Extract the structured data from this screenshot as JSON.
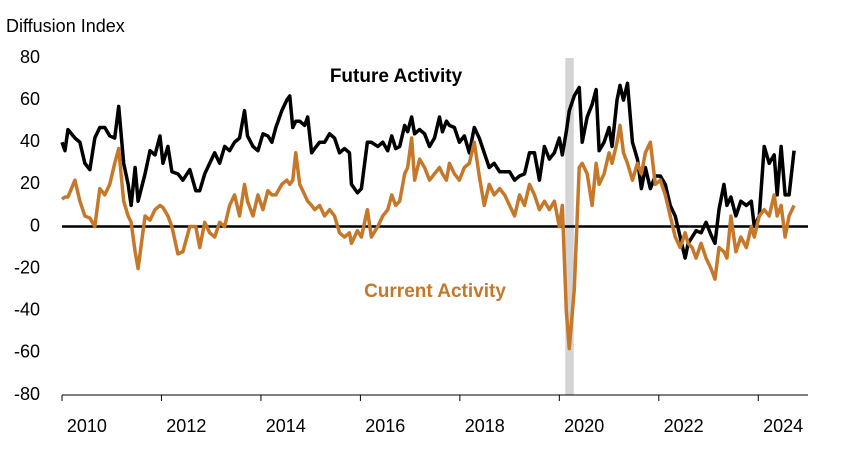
{
  "chart_data": {
    "type": "line",
    "y_axis_label": "Diffusion Index",
    "annotations": [
      {
        "text": "Future Activity",
        "series": 0
      },
      {
        "text": "Current Activity",
        "series": 1
      }
    ],
    "shaded_region": [
      2020.12,
      2020.29
    ],
    "xlim": [
      2010,
      2025
    ],
    "xticks": [
      2010,
      2012,
      2014,
      2016,
      2018,
      2020,
      2022,
      2024
    ],
    "ylim": [
      -80,
      80
    ],
    "yticks": [
      -80,
      -60,
      -40,
      -20,
      0,
      20,
      40,
      60,
      80
    ],
    "x": [
      2010.0,
      2010.06,
      2010.12,
      2010.26,
      2010.36,
      2010.46,
      2010.56,
      2010.66,
      2010.76,
      2010.86,
      2010.96,
      2011.06,
      2011.14,
      2011.24,
      2011.33,
      2011.39,
      2011.47,
      2011.53,
      2011.67,
      2011.77,
      2011.87,
      2011.97,
      2012.03,
      2012.13,
      2012.21,
      2012.33,
      2012.43,
      2012.57,
      2012.69,
      2012.77,
      2012.87,
      2012.97,
      2013.07,
      2013.17,
      2013.27,
      2013.37,
      2013.47,
      2013.57,
      2013.67,
      2013.73,
      2013.84,
      2013.94,
      2014.04,
      2014.14,
      2014.22,
      2014.3,
      2014.42,
      2014.52,
      2014.58,
      2014.64,
      2014.7,
      2014.78,
      2014.88,
      2014.94,
      2015.02,
      2015.08,
      2015.18,
      2015.28,
      2015.38,
      2015.48,
      2015.58,
      2015.68,
      2015.78,
      2015.82,
      2015.94,
      2016.02,
      2016.14,
      2016.22,
      2016.35,
      2016.45,
      2016.55,
      2016.63,
      2016.71,
      2016.79,
      2016.89,
      2016.95,
      2017.03,
      2017.09,
      2017.19,
      2017.29,
      2017.39,
      2017.49,
      2017.59,
      2017.65,
      2017.73,
      2017.79,
      2017.89,
      2017.99,
      2018.09,
      2018.19,
      2018.29,
      2018.39,
      2018.49,
      2018.59,
      2018.69,
      2018.8,
      2018.9,
      2019.0,
      2019.1,
      2019.2,
      2019.3,
      2019.4,
      2019.5,
      2019.6,
      2019.7,
      2019.8,
      2019.9,
      2020.0,
      2020.06,
      2020.14,
      2020.2,
      2020.3,
      2020.4,
      2020.46,
      2020.56,
      2020.66,
      2020.74,
      2020.8,
      2020.9,
      2021.0,
      2021.06,
      2021.16,
      2021.22,
      2021.29,
      2021.37,
      2021.47,
      2021.57,
      2021.65,
      2021.73,
      2021.83,
      2021.93,
      2022.03,
      2022.13,
      2022.23,
      2022.33,
      2022.43,
      2022.53,
      2022.59,
      2022.67,
      2022.75,
      2022.85,
      2022.95,
      2023.05,
      2023.13,
      2023.21,
      2023.31,
      2023.37,
      2023.45,
      2023.55,
      2023.65,
      2023.76,
      2023.86,
      2023.92,
      2024.02,
      2024.12,
      2024.22,
      2024.32,
      2024.38,
      2024.46,
      2024.54,
      2024.62,
      2024.72
    ],
    "series": [
      {
        "name": "Future Activity",
        "color": "#000000",
        "values": [
          40,
          36,
          46,
          42,
          40,
          30,
          27,
          42,
          47,
          47,
          43,
          42,
          57,
          30,
          20,
          10,
          28,
          12,
          25,
          36,
          34,
          43,
          30,
          38,
          26,
          25,
          22,
          27,
          17,
          17,
          25,
          30,
          35,
          30,
          38,
          36,
          40,
          42,
          55,
          43,
          38,
          36,
          44,
          43,
          40,
          47,
          55,
          60,
          62,
          47,
          50,
          50,
          48,
          52,
          35,
          37,
          40,
          40,
          44,
          42,
          35,
          37,
          35,
          20,
          16,
          18,
          40,
          40,
          38,
          40,
          36,
          43,
          37,
          38,
          48,
          45,
          52,
          44,
          46,
          44,
          38,
          42,
          52,
          45,
          50,
          48,
          47,
          40,
          43,
          35,
          47,
          42,
          35,
          28,
          30,
          26,
          26,
          26,
          22,
          24,
          25,
          35,
          35,
          22,
          38,
          32,
          35,
          42,
          34,
          45,
          55,
          62,
          66,
          40,
          52,
          58,
          65,
          36,
          40,
          47,
          38,
          60,
          67,
          60,
          68,
          40,
          32,
          18,
          28,
          18,
          24,
          24,
          20,
          10,
          5,
          -5,
          -15,
          -8,
          -5,
          -2,
          -3,
          2,
          -4,
          -8,
          8,
          20,
          10,
          14,
          5,
          12,
          10,
          12,
          0,
          5,
          38,
          30,
          34,
          15,
          38,
          15,
          15,
          36
        ]
      },
      {
        "name": "Current Activity",
        "color": "#c5782a",
        "values": [
          13,
          14,
          14,
          22,
          12,
          5,
          4,
          0,
          18,
          15,
          20,
          30,
          37,
          12,
          5,
          2,
          -12,
          -20,
          5,
          3,
          8,
          10,
          9,
          5,
          0,
          -13,
          -12,
          0,
          0,
          -10,
          2,
          -3,
          -5,
          2,
          0,
          10,
          15,
          5,
          20,
          12,
          5,
          15,
          8,
          17,
          15,
          15,
          20,
          22,
          20,
          22,
          35,
          20,
          15,
          12,
          10,
          8,
          10,
          5,
          8,
          5,
          -3,
          -5,
          -3,
          -8,
          -2,
          -5,
          8,
          -5,
          0,
          5,
          8,
          15,
          10,
          12,
          25,
          28,
          42,
          22,
          32,
          28,
          22,
          25,
          28,
          25,
          22,
          30,
          25,
          22,
          28,
          30,
          40,
          24,
          10,
          20,
          15,
          18,
          15,
          10,
          5,
          15,
          10,
          20,
          15,
          8,
          12,
          8,
          12,
          0,
          10,
          -40,
          -58,
          -30,
          28,
          30,
          25,
          10,
          30,
          20,
          25,
          35,
          30,
          40,
          48,
          35,
          30,
          22,
          30,
          25,
          35,
          40,
          20,
          22,
          15,
          5,
          -5,
          -10,
          -3,
          -8,
          -10,
          -15,
          -8,
          -15,
          -20,
          -25,
          -10,
          -12,
          -15,
          5,
          -12,
          -5,
          -10,
          0,
          -5,
          5,
          8,
          5,
          15,
          5,
          10,
          -5,
          5,
          10
        ]
      }
    ]
  }
}
